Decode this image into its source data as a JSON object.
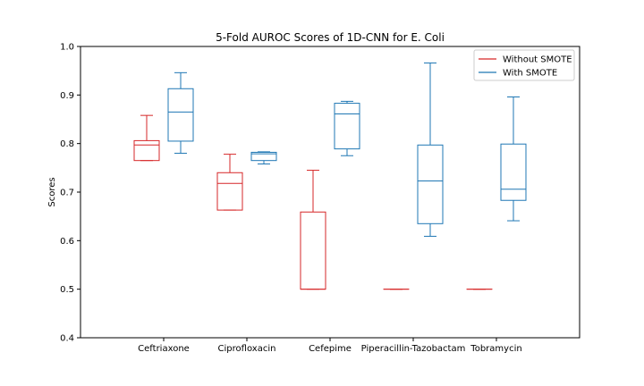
{
  "chart_data": {
    "type": "boxplot",
    "title": "5-Fold AUROC Scores of 1D-CNN for E. Coli",
    "xlabel": "",
    "ylabel": "Scores",
    "ylim": [
      0.4,
      1.0
    ],
    "yticks": [
      "0.4",
      "0.5",
      "0.6",
      "0.7",
      "0.8",
      "0.9",
      "1.0"
    ],
    "categories": [
      "Ceftriaxone",
      "Ciprofloxacin",
      "Cefepime",
      "Piperacillin-Tazobactam",
      "Tobramycin"
    ],
    "legend_position": "top-right",
    "grid": false,
    "series": [
      {
        "name": "Without SMOTE",
        "color": "#d62728",
        "boxes": [
          {
            "whislo": 0.765,
            "q1": 0.765,
            "med": 0.797,
            "q3": 0.806,
            "whishi": 0.858
          },
          {
            "whislo": 0.663,
            "q1": 0.663,
            "med": 0.718,
            "q3": 0.74,
            "whishi": 0.778
          },
          {
            "whislo": 0.5,
            "q1": 0.5,
            "med": 0.5,
            "q3": 0.659,
            "whishi": 0.745
          },
          {
            "whislo": 0.5,
            "q1": 0.5,
            "med": 0.5,
            "q3": 0.5,
            "whishi": 0.5
          },
          {
            "whislo": 0.5,
            "q1": 0.5,
            "med": 0.5,
            "q3": 0.5,
            "whishi": 0.5
          }
        ]
      },
      {
        "name": "With SMOTE",
        "color": "#1f77b4",
        "boxes": [
          {
            "whislo": 0.78,
            "q1": 0.805,
            "med": 0.865,
            "q3": 0.913,
            "whishi": 0.946
          },
          {
            "whislo": 0.758,
            "q1": 0.765,
            "med": 0.779,
            "q3": 0.782,
            "whishi": 0.783
          },
          {
            "whislo": 0.775,
            "q1": 0.789,
            "med": 0.861,
            "q3": 0.883,
            "whishi": 0.887
          },
          {
            "whislo": 0.609,
            "q1": 0.635,
            "med": 0.723,
            "q3": 0.797,
            "whishi": 0.966
          },
          {
            "whislo": 0.641,
            "q1": 0.683,
            "med": 0.706,
            "q3": 0.799,
            "whishi": 0.896
          }
        ]
      }
    ]
  }
}
